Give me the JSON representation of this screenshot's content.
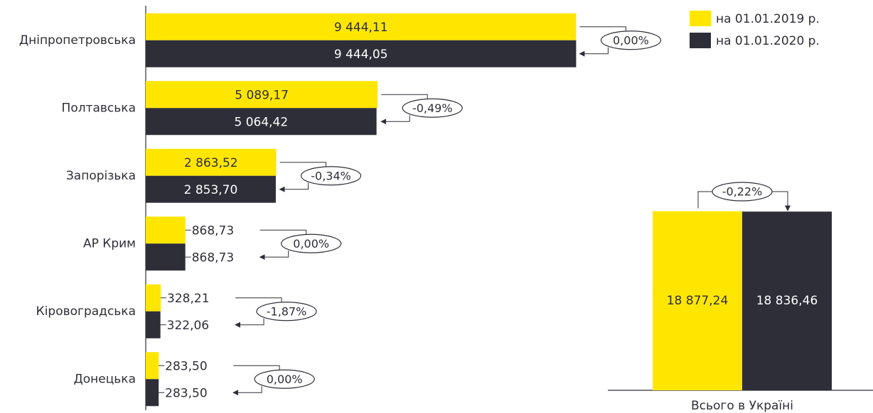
{
  "chart_data": [
    {
      "type": "bar",
      "orientation": "horizontal",
      "categories": [
        "Дніпропетровська",
        "Полтавська",
        "Запорізька",
        "АР Крим",
        "Кіровоградська",
        "Донецька"
      ],
      "series": [
        {
          "name": "на 01.01.2019 р.",
          "color": "#ffe600",
          "values": [
            9444.11,
            5089.17,
            2863.52,
            868.73,
            328.21,
            283.5
          ],
          "value_labels": [
            "9 444,11",
            "5 089,17",
            "2 863,52",
            "868,73",
            "328,21",
            "283,50"
          ]
        },
        {
          "name": "на 01.01.2020 р.",
          "color": "#2e2e38",
          "values": [
            9444.05,
            5064.42,
            2853.7,
            868.73,
            322.06,
            283.5
          ],
          "value_labels": [
            "9 444,05",
            "5 064,42",
            "2 853,70",
            "868,73",
            "322,06",
            "283,50"
          ]
        }
      ],
      "changes": [
        0.0,
        -0.49,
        -0.34,
        0.0,
        -1.87,
        0.0
      ],
      "change_labels": [
        "0,00%",
        "-0,49%",
        "-0,34%",
        "0,00%",
        "-1,87%",
        "0,00%"
      ],
      "xlim": [
        0,
        9500
      ],
      "legend": "top-right"
    },
    {
      "type": "bar",
      "orientation": "vertical",
      "categories": [
        "Всього в Україні"
      ],
      "series": [
        {
          "color": "#ffe600",
          "values": [
            18877.24
          ],
          "value_labels": [
            "18 877,24"
          ]
        },
        {
          "color": "#2e2e38",
          "values": [
            18836.46
          ],
          "value_labels": [
            "18 836,46"
          ]
        }
      ],
      "changes": [
        -0.22
      ],
      "change_labels": [
        "-0,22%"
      ],
      "ylim": [
        0,
        19000
      ]
    }
  ]
}
